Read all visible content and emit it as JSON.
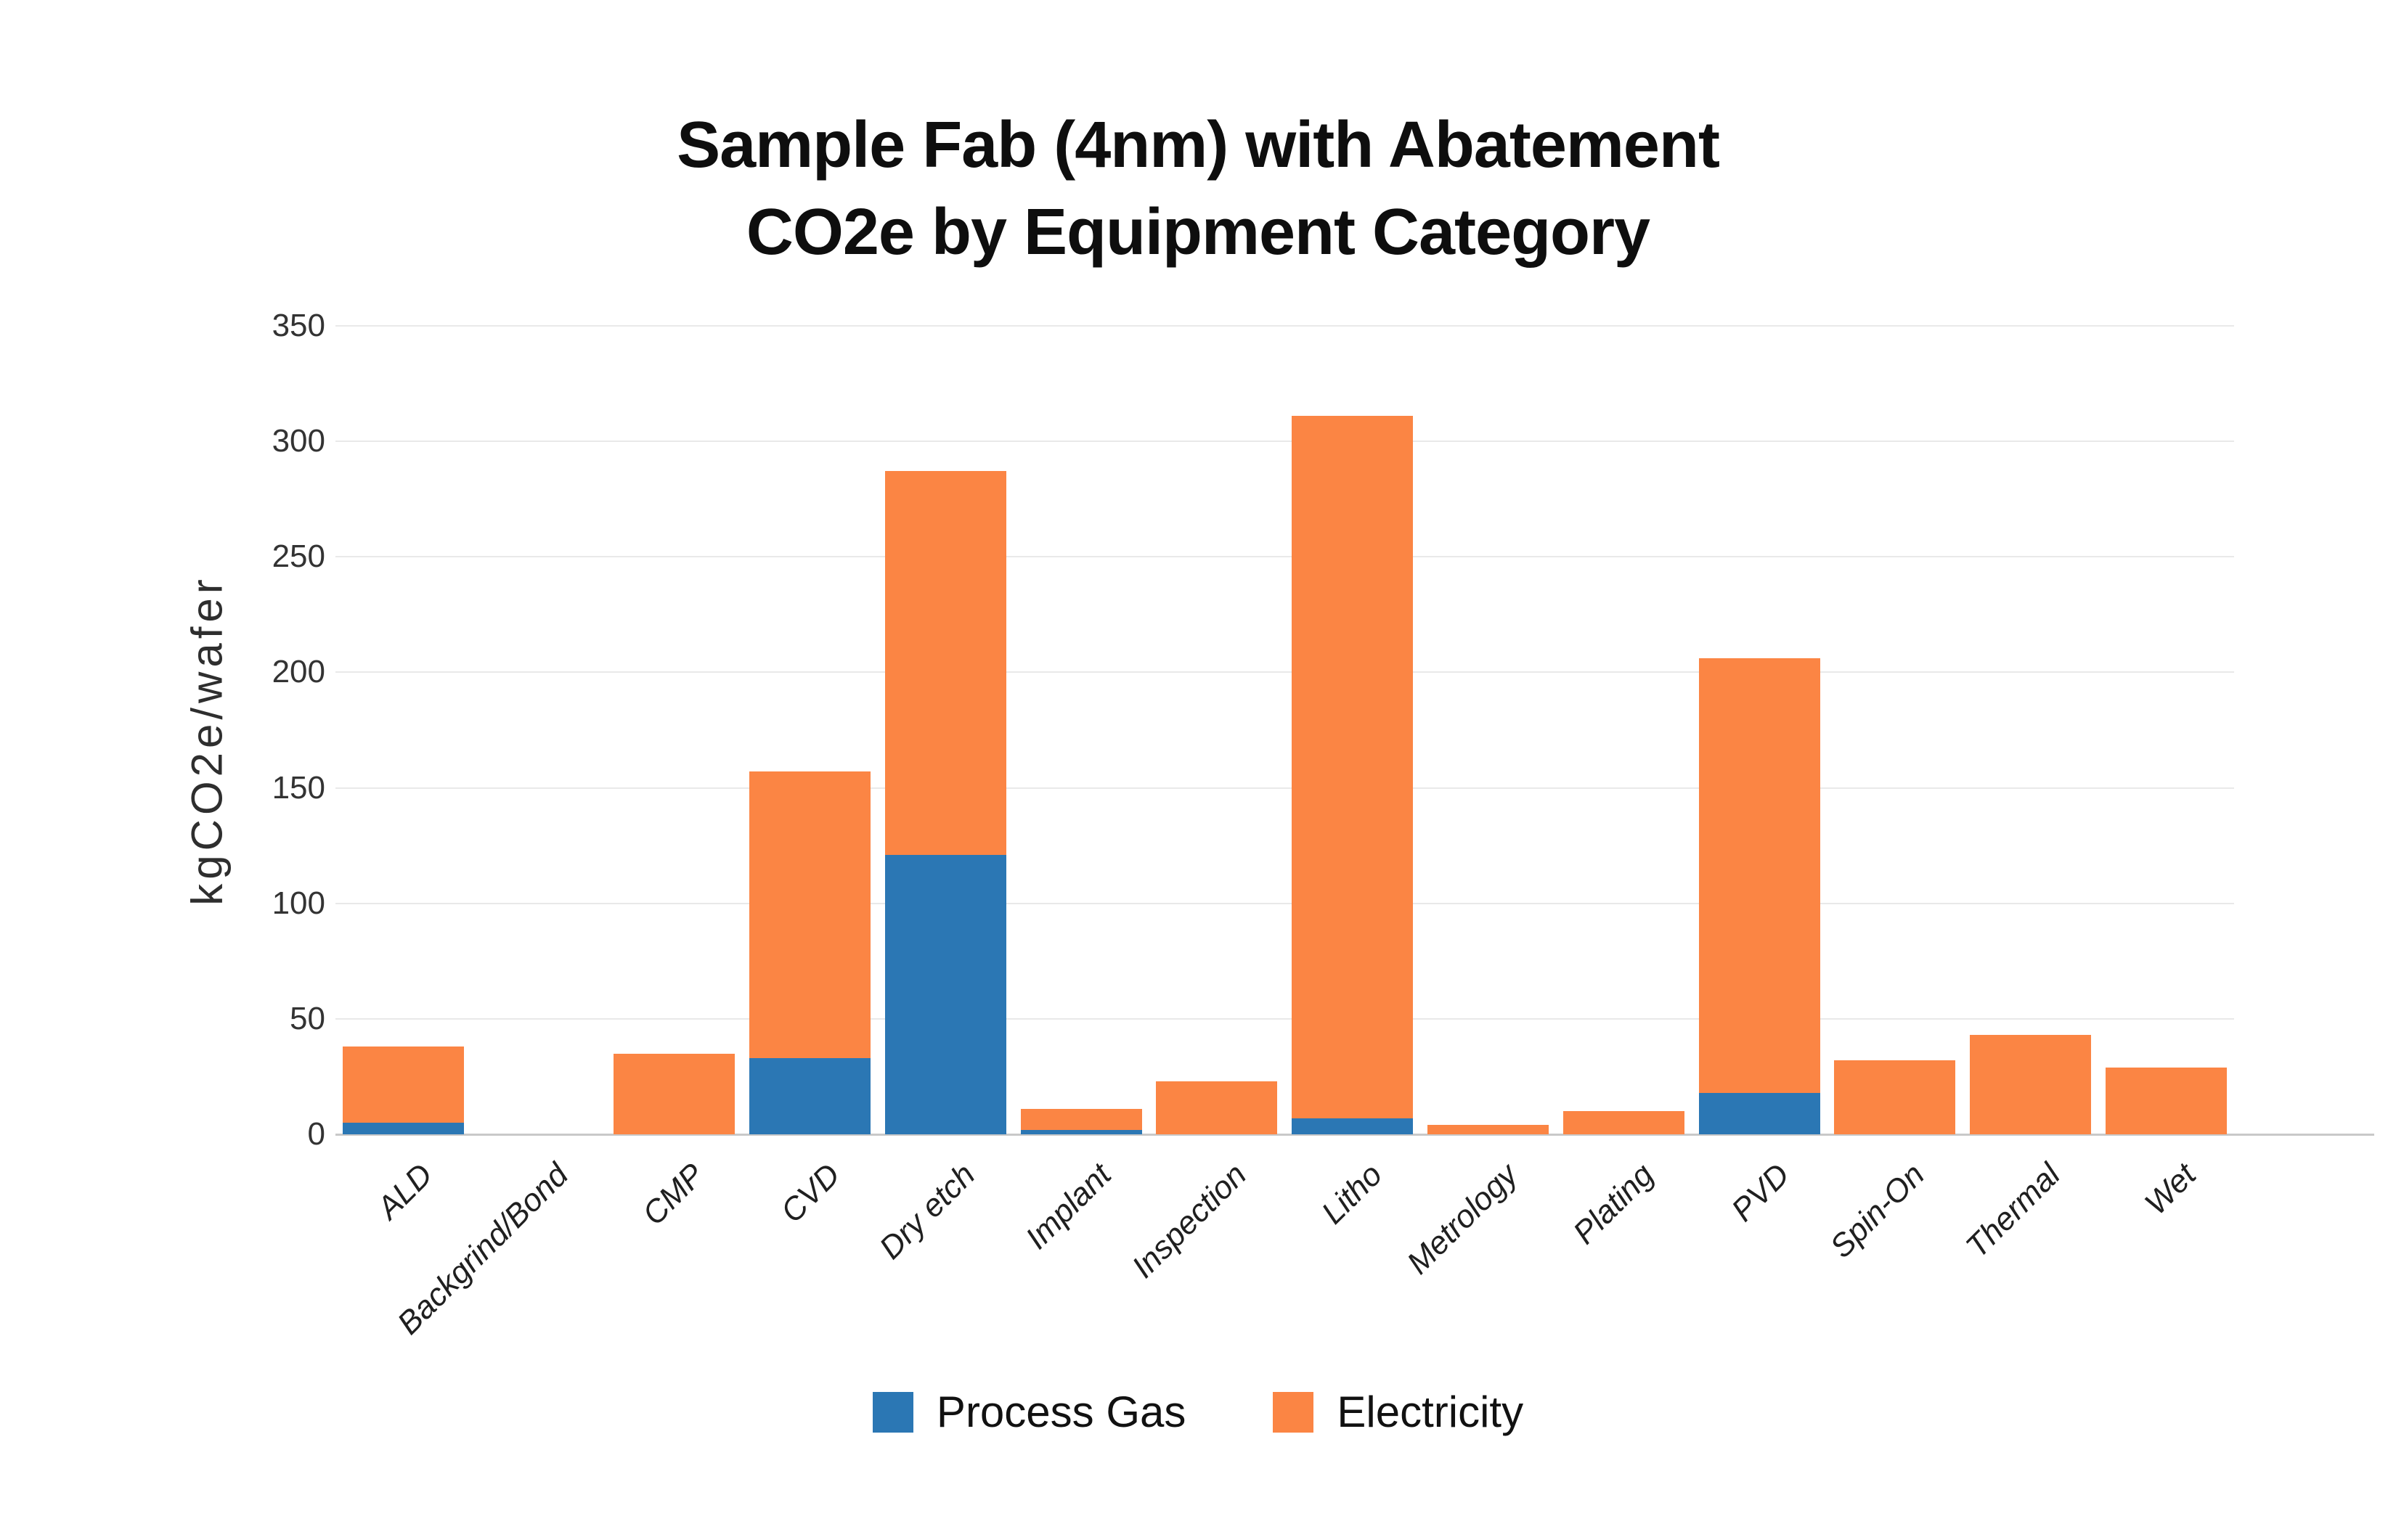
{
  "title": {
    "line1": "Sample Fab (4nm) with Abatement",
    "line2": "CO2e by Equipment Category"
  },
  "chart_data": {
    "type": "bar",
    "stacked": true,
    "title": "Sample Fab (4nm) with Abatement CO2e by Equipment Category",
    "xlabel": "",
    "ylabel": "kgCO2e/wafer",
    "ylim": [
      0,
      350
    ],
    "ytick_step": 50,
    "grid": true,
    "legend_position": "bottom",
    "categories": [
      "ALD",
      "Backgrind/Bond",
      "CMP",
      "CVD",
      "Dry etch",
      "Implant",
      "Inspection",
      "Litho",
      "Metrology",
      "Plating",
      "PVD",
      "Spin-On",
      "Thermal",
      "Wet"
    ],
    "series": [
      {
        "name": "Process Gas",
        "color": "#2b77b4",
        "values": [
          5,
          0,
          0,
          33,
          121,
          2,
          0,
          7,
          0,
          0,
          18,
          0,
          0,
          0
        ]
      },
      {
        "name": "Electricity",
        "color": "#fb8544",
        "values": [
          33,
          0,
          35,
          124,
          166,
          9,
          23,
          304,
          4,
          10,
          188,
          32,
          43,
          29
        ]
      }
    ],
    "totals": [
      38,
      0,
      35,
      157,
      287,
      11,
      23,
      311,
      4,
      10,
      206,
      32,
      43,
      29
    ]
  },
  "colors": {
    "grid": "#e9e9e9",
    "axis": "#c9c9c9",
    "tick_text": "#333333",
    "title_text": "#0e0e0e"
  }
}
